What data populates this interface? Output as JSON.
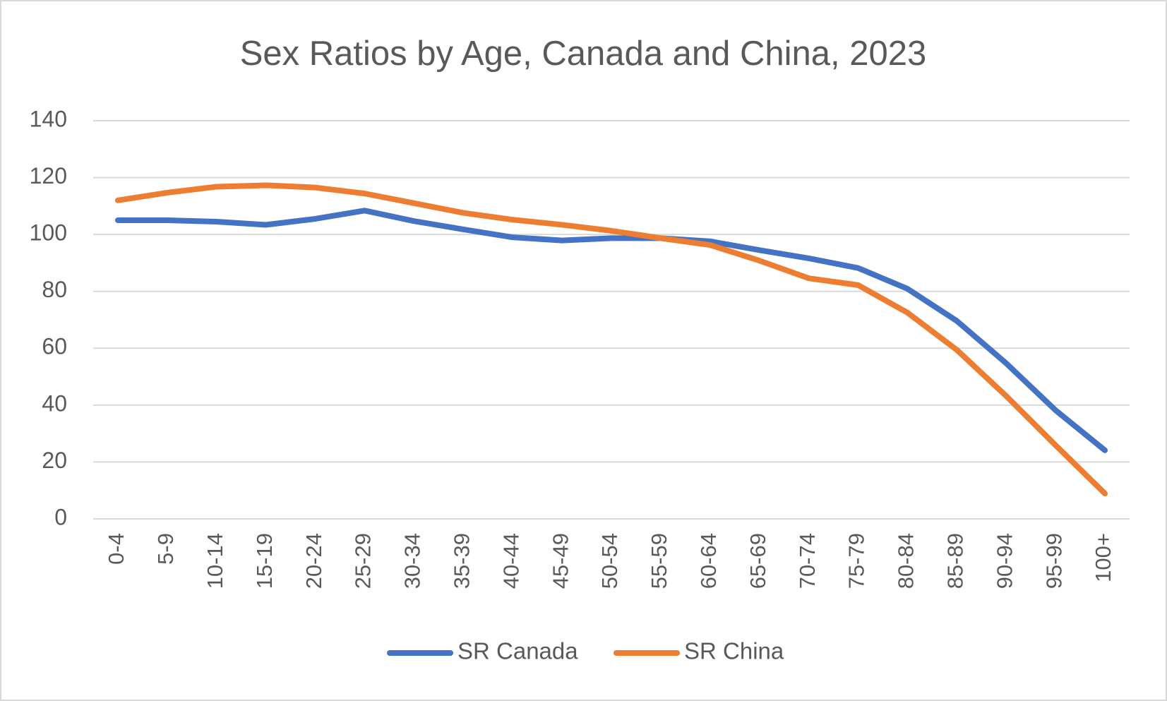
{
  "chart_data": {
    "type": "line",
    "title": "Sex Ratios by Age, Canada and China, 2023",
    "categories": [
      "0-4",
      "5-9",
      "10-14",
      "15-19",
      "20-24",
      "25-29",
      "30-34",
      "35-39",
      "40-44",
      "45-49",
      "50-54",
      "55-59",
      "60-64",
      "65-69",
      "70-74",
      "75-79",
      "80-84",
      "85-89",
      "90-94",
      "95-99",
      "100+"
    ],
    "series": [
      {
        "name": "SR Canada",
        "color": "#4472c4",
        "values": [
          105,
          105,
          104.5,
          103.4,
          105.5,
          108.4,
          104.7,
          101.8,
          99,
          97.9,
          98.7,
          98.7,
          97.6,
          94.5,
          91.6,
          88.2,
          80.9,
          69.6,
          54.7,
          38.2,
          24.1
        ]
      },
      {
        "name": "SR China",
        "color": "#ed7d31",
        "values": [
          112,
          114.7,
          116.8,
          117.3,
          116.5,
          114.4,
          111,
          107.6,
          105.2,
          103.4,
          101.3,
          98.7,
          96.3,
          90.8,
          84.6,
          82.2,
          72.5,
          59.4,
          43.2,
          25.9,
          8.9
        ]
      }
    ],
    "ylim": [
      0,
      140
    ],
    "yticks": [
      0,
      20,
      40,
      60,
      80,
      100,
      120,
      140
    ],
    "grid": true,
    "legend": "bottom"
  }
}
